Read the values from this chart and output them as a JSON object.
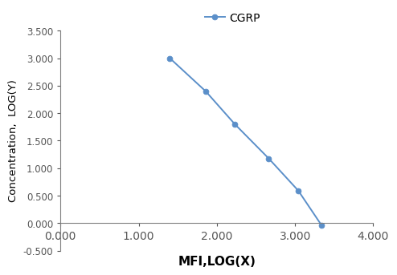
{
  "x": [
    1.398,
    1.857,
    2.23,
    2.663,
    3.041,
    3.342
  ],
  "y": [
    3.0,
    2.398,
    1.799,
    1.176,
    0.591,
    -0.046
  ],
  "line_color": "#5b8fc9",
  "marker_color": "#5b8fc9",
  "marker_style": "o",
  "marker_size": 5,
  "line_width": 1.4,
  "legend_label": "CGRP",
  "xlabel": "MFI,LOG(X)",
  "ylabel": "Concentration,  LOG(Y)",
  "xlim": [
    0.0,
    4.0
  ],
  "ylim": [
    -0.5,
    3.5
  ],
  "xticks": [
    0.0,
    1.0,
    2.0,
    3.0,
    4.0
  ],
  "yticks": [
    -0.5,
    0.0,
    0.5,
    1.0,
    1.5,
    2.0,
    2.5,
    3.0,
    3.5
  ],
  "xtick_labels": [
    "0.000",
    "1.000",
    "2.000",
    "3.000",
    "4.000"
  ],
  "ytick_labels": [
    "-0.500",
    "0.000",
    "0.500",
    "1.000",
    "1.500",
    "2.000",
    "2.500",
    "3.000",
    "3.500"
  ],
  "background_color": "#ffffff",
  "xlabel_fontsize": 11,
  "ylabel_fontsize": 9.5,
  "tick_fontsize": 8.5,
  "legend_fontsize": 10,
  "xlabel_fontweight": "bold",
  "ylabel_fontweight": "normal",
  "spine_color": "#7f7f7f",
  "tick_color": "#555555"
}
